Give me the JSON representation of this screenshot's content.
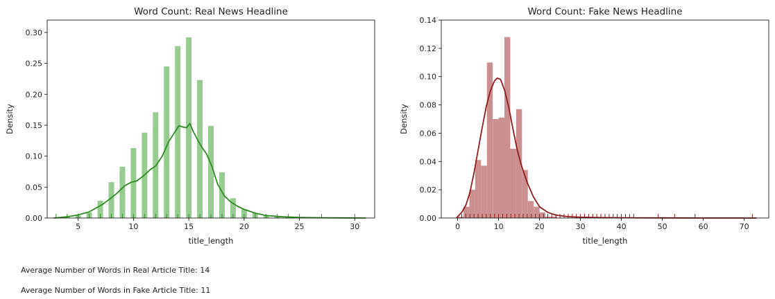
{
  "chart_data": [
    {
      "type": "bar",
      "title": "Word Count: Real News Headline",
      "xlabel": "title_length",
      "ylabel": "Density",
      "xlim": [
        2.2,
        31.8
      ],
      "ylim": [
        0,
        0.32
      ],
      "xticks": [
        5,
        10,
        15,
        20,
        25,
        30
      ],
      "yticks": [
        0.0,
        0.05,
        0.1,
        0.15,
        0.2,
        0.25,
        0.3
      ],
      "ytick_labels": [
        "0.00",
        "0.05",
        "0.10",
        "0.15",
        "0.20",
        "0.25",
        "0.30"
      ],
      "color": "#2e8b22",
      "bar_color": "#96cc8f",
      "bar_width": 0.5,
      "bars": [
        {
          "x": 3,
          "value": 0.001
        },
        {
          "x": 4,
          "value": 0.002
        },
        {
          "x": 5,
          "value": 0.004
        },
        {
          "x": 6,
          "value": 0.009
        },
        {
          "x": 7,
          "value": 0.028
        },
        {
          "x": 8,
          "value": 0.058
        },
        {
          "x": 9,
          "value": 0.083
        },
        {
          "x": 10,
          "value": 0.113
        },
        {
          "x": 11,
          "value": 0.138
        },
        {
          "x": 12,
          "value": 0.171
        },
        {
          "x": 13,
          "value": 0.245
        },
        {
          "x": 14,
          "value": 0.278
        },
        {
          "x": 15,
          "value": 0.292
        },
        {
          "x": 16,
          "value": 0.223
        },
        {
          "x": 17,
          "value": 0.149
        },
        {
          "x": 18,
          "value": 0.074
        },
        {
          "x": 19,
          "value": 0.032
        },
        {
          "x": 20,
          "value": 0.014
        },
        {
          "x": 21,
          "value": 0.008
        },
        {
          "x": 22,
          "value": 0.004
        },
        {
          "x": 23,
          "value": 0.002
        },
        {
          "x": 24,
          "value": 0.001
        },
        {
          "x": 25,
          "value": 0.001
        }
      ],
      "kde": {
        "x": [
          2.8,
          4,
          5,
          6,
          6.6,
          7.2,
          7.8,
          8.5,
          9.2,
          9.8,
          10.3,
          10.9,
          11.5,
          12,
          12.6,
          13.2,
          13.7,
          14.1,
          14.5,
          14.8,
          15.1,
          15.4,
          15.8,
          16.2,
          16.6,
          17.1,
          17.6,
          18.2,
          18.8,
          19.4,
          20,
          21,
          22,
          23.5,
          25,
          27,
          29,
          31
        ],
        "y": [
          0.0,
          0.002,
          0.005,
          0.01,
          0.016,
          0.022,
          0.03,
          0.04,
          0.052,
          0.058,
          0.06,
          0.068,
          0.078,
          0.084,
          0.1,
          0.124,
          0.138,
          0.149,
          0.147,
          0.146,
          0.153,
          0.14,
          0.126,
          0.114,
          0.104,
          0.083,
          0.055,
          0.036,
          0.026,
          0.019,
          0.014,
          0.008,
          0.004,
          0.002,
          0.001,
          0.0005,
          0.0002,
          0.0
        ]
      },
      "rug": [
        3,
        4,
        5,
        6,
        7,
        8,
        9,
        10,
        11,
        12,
        13,
        14,
        15,
        16,
        17,
        18,
        19,
        20,
        21,
        22,
        23,
        24,
        25,
        27,
        30
      ]
    },
    {
      "type": "bar",
      "title": "Word Count: Fake News Headline",
      "xlabel": "title_length",
      "ylabel": "Density",
      "xlim": [
        -4,
        76
      ],
      "ylim": [
        0,
        0.14
      ],
      "xticks": [
        0,
        10,
        20,
        30,
        40,
        50,
        60,
        70
      ],
      "yticks": [
        0.0,
        0.02,
        0.04,
        0.06,
        0.08,
        0.1,
        0.12,
        0.14
      ],
      "ytick_labels": [
        "0.00",
        "0.02",
        "0.04",
        "0.06",
        "0.08",
        "0.10",
        "0.12",
        "0.14"
      ],
      "color": "#921b1b",
      "bar_color": "#cc8f8f",
      "bar_width": 1.43,
      "bars": [
        {
          "x": 0.71,
          "value": 0.001
        },
        {
          "x": 2.14,
          "value": 0.008
        },
        {
          "x": 3.57,
          "value": 0.02
        },
        {
          "x": 5.0,
          "value": 0.041
        },
        {
          "x": 6.43,
          "value": 0.037
        },
        {
          "x": 7.86,
          "value": 0.11
        },
        {
          "x": 9.29,
          "value": 0.07
        },
        {
          "x": 10.71,
          "value": 0.071
        },
        {
          "x": 12.14,
          "value": 0.128
        },
        {
          "x": 13.57,
          "value": 0.049
        },
        {
          "x": 15.0,
          "value": 0.077
        },
        {
          "x": 16.43,
          "value": 0.034
        },
        {
          "x": 17.86,
          "value": 0.012
        },
        {
          "x": 19.29,
          "value": 0.008
        },
        {
          "x": 20.71,
          "value": 0.004
        },
        {
          "x": 22.14,
          "value": 0.001
        },
        {
          "x": 23.57,
          "value": 0.001
        }
      ],
      "kde": {
        "x": [
          -0.3,
          1,
          2,
          3,
          4,
          5,
          6,
          7,
          8,
          9,
          9.7,
          10.5,
          11.5,
          12.5,
          13.5,
          14.5,
          15.5,
          17,
          18.5,
          20,
          22,
          24,
          27,
          30,
          35,
          40,
          50,
          60,
          73
        ],
        "y": [
          0.0,
          0.004,
          0.009,
          0.018,
          0.032,
          0.048,
          0.064,
          0.079,
          0.09,
          0.097,
          0.099,
          0.098,
          0.09,
          0.078,
          0.063,
          0.049,
          0.038,
          0.025,
          0.015,
          0.008,
          0.004,
          0.002,
          0.001,
          0.0006,
          0.0003,
          0.0002,
          0.0001,
          0.0,
          0.0
        ]
      },
      "rug": [
        1,
        2,
        3,
        4,
        5,
        6,
        7,
        8,
        9,
        10,
        11,
        12,
        13,
        14,
        15,
        16,
        17,
        18,
        19,
        20,
        21,
        22,
        23,
        24,
        25,
        26,
        27,
        28,
        29,
        30,
        31,
        32,
        33,
        34,
        35,
        36,
        37,
        38,
        39,
        40,
        41,
        42,
        43,
        49,
        53,
        58,
        72
      ]
    }
  ],
  "notes": {
    "real_avg": "Average Number of Words in Real Article Title: 14",
    "fake_avg": "Average Number of Words in Fake Article Title: 11"
  }
}
